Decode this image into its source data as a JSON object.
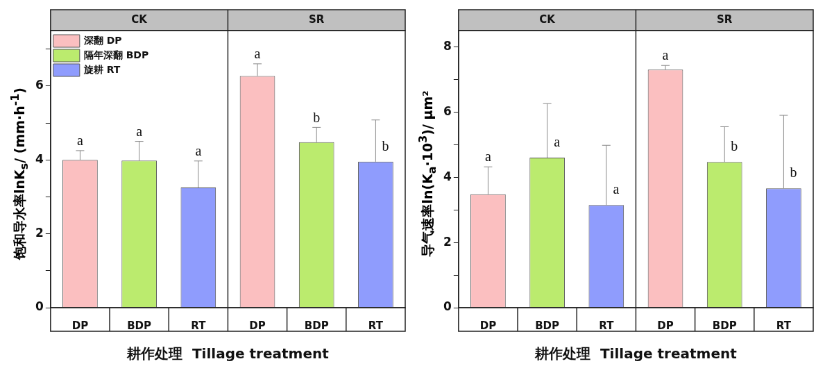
{
  "chart_data": [
    {
      "type": "bar",
      "xlabel": "耕作处理  Tillage treatment",
      "ylabel": "饱和导水率lnK$_{s}$/ (mm·h$^{-1}$)",
      "categories": [
        "DP",
        "BDP",
        "RT",
        "DP",
        "BDP",
        "RT"
      ],
      "annotations": [
        "CK",
        "SR"
      ],
      "ylim": [
        0,
        7.5
      ],
      "yticks": [
        0,
        {
          "value": 1,
          "label": null
        },
        2,
        {
          "value": 3,
          "label": null
        },
        4,
        {
          "value": 5,
          "label": null
        },
        6,
        {
          "value": 7,
          "label": null
        }
      ],
      "legend": "top left",
      "grid": false,
      "series": [
        {
          "name": "深翻 DP",
          "color": "#fbbfc0",
          "values": [
            4.0,
            null,
            null,
            6.27,
            null,
            null
          ],
          "errors": [
            [
              4.0,
              4.25
            ],
            null,
            null,
            [
              6.27,
              6.6
            ],
            null,
            null
          ],
          "value_labels": [
            "a",
            null,
            null,
            "a",
            null,
            null
          ]
        },
        {
          "name": "隔年深翻 BDP",
          "color": "#bbeb6e",
          "values": [
            null,
            3.98,
            null,
            null,
            4.48,
            null
          ],
          "errors": [
            null,
            [
              3.98,
              4.5
            ],
            null,
            null,
            [
              4.48,
              4.88
            ],
            null
          ],
          "value_labels": [
            null,
            "a",
            null,
            null,
            "b",
            null
          ]
        },
        {
          "name": "旋耕 RT",
          "color": "#8f9cfd",
          "values": [
            null,
            null,
            3.25,
            null,
            null,
            3.95
          ],
          "errors": [
            null,
            null,
            [
              3.25,
              3.97
            ],
            null,
            null,
            [
              3.95,
              5.08
            ]
          ],
          "value_labels": [
            null,
            null,
            "a",
            null,
            null,
            "b"
          ]
        }
      ]
    },
    {
      "type": "bar",
      "xlabel": "耕作处理  Tillage treatment",
      "ylabel": "导气速率ln(K$_{a}$·10$^{3}$)/ μm²",
      "categories": [
        "DP",
        "BDP",
        "RT",
        "DP",
        "BDP",
        "RT"
      ],
      "annotations": [
        "CK",
        "SR"
      ],
      "ylim": [
        0,
        8.5
      ],
      "yticks": [
        0,
        {
          "value": 1,
          "label": null
        },
        2,
        {
          "value": 3,
          "label": null
        },
        4,
        {
          "value": 5,
          "label": null
        },
        6,
        {
          "value": 7,
          "label": null
        },
        8
      ],
      "grid": false,
      "series": [
        {
          "color": "#fbbfc0",
          "values": [
            3.48,
            null,
            null,
            7.3,
            null,
            null
          ],
          "errors": [
            [
              3.48,
              4.32
            ],
            null,
            null,
            [
              7.3,
              7.43
            ],
            null,
            null
          ],
          "value_labels": [
            "a",
            null,
            null,
            "a",
            null,
            null
          ]
        },
        {
          "color": "#bbeb6e",
          "values": [
            null,
            4.6,
            null,
            null,
            4.47,
            null
          ],
          "errors": [
            null,
            [
              4.6,
              6.26
            ],
            null,
            null,
            [
              4.47,
              5.55
            ],
            null
          ],
          "value_labels": [
            null,
            "a",
            null,
            null,
            "b",
            null
          ]
        },
        {
          "color": "#8f9cfd",
          "values": [
            null,
            null,
            3.15,
            null,
            null,
            3.66
          ],
          "errors": [
            null,
            null,
            [
              3.15,
              4.98
            ],
            null,
            null,
            [
              3.66,
              5.9
            ]
          ],
          "value_labels": [
            null,
            null,
            "a",
            null,
            null,
            "b"
          ]
        }
      ]
    }
  ]
}
